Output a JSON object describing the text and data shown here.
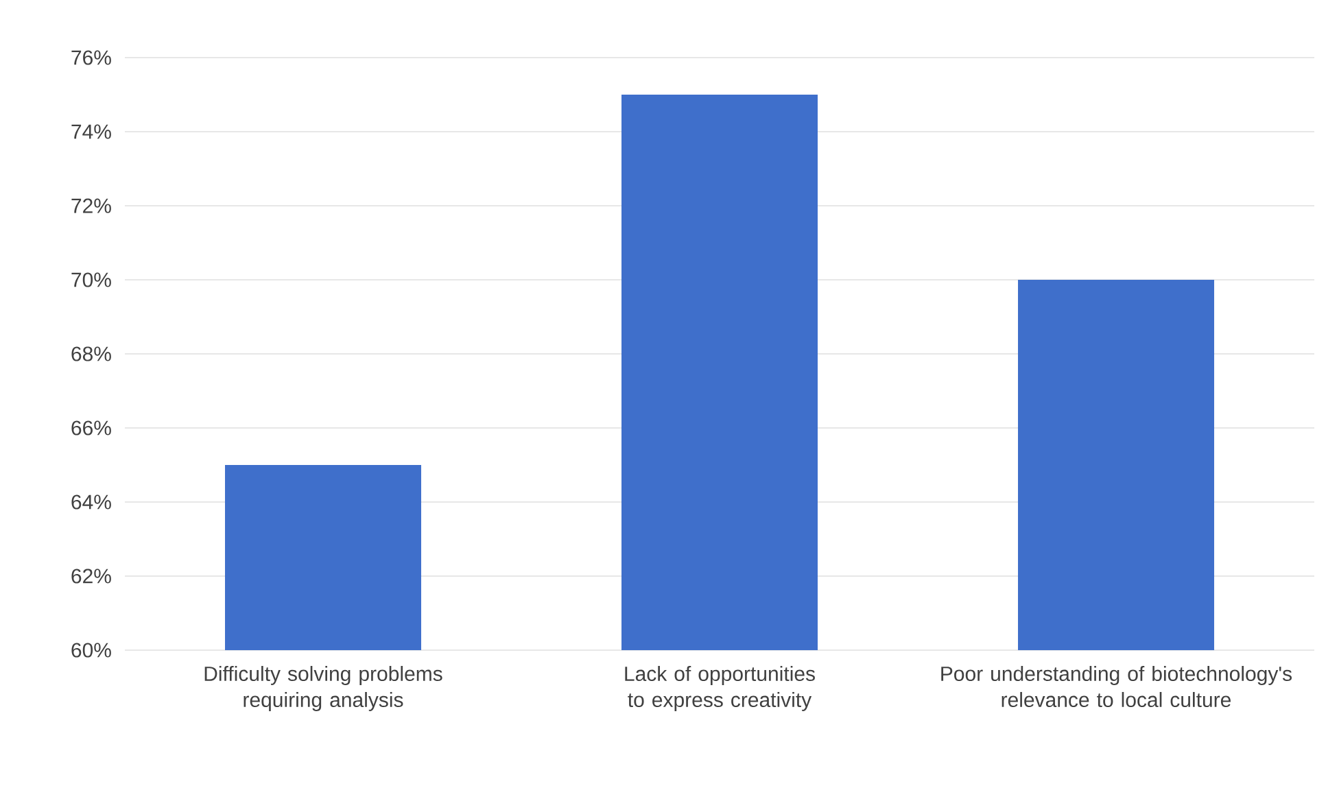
{
  "chart_data": {
    "type": "bar",
    "categories": [
      "Difficulty solving problems requiring analysis",
      "Lack of opportunities to express creativity",
      "Poor understanding of biotechnology's relevance to local culture"
    ],
    "values": [
      65,
      75,
      70
    ],
    "color": "#3f6fcb",
    "ylim": [
      60,
      76
    ],
    "yticks": [
      {
        "value": 60,
        "label": "60%"
      },
      {
        "value": 62,
        "label": "62%"
      },
      {
        "value": 64,
        "label": "64%"
      },
      {
        "value": 66,
        "label": "66%"
      },
      {
        "value": 68,
        "label": "68%"
      },
      {
        "value": 70,
        "label": "70%"
      },
      {
        "value": 72,
        "label": "72%"
      },
      {
        "value": 74,
        "label": "74%"
      },
      {
        "value": 76,
        "label": "76%"
      }
    ],
    "grid": "y"
  }
}
